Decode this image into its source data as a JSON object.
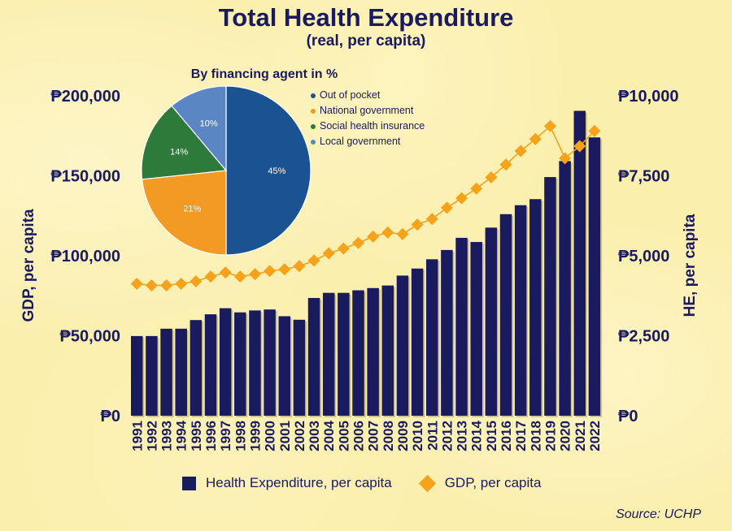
{
  "title": "Total Health Expenditure",
  "subtitle": "(real, per capita)",
  "source": "Source: UCHP",
  "chart_data": [
    {
      "type": "bar",
      "categories": [
        "1991",
        "1992",
        "1993",
        "1994",
        "1995",
        "1996",
        "1997",
        "1998",
        "1999",
        "2000",
        "2001",
        "2002",
        "2003",
        "2004",
        "2005",
        "2006",
        "2007",
        "2008",
        "2009",
        "2010",
        "2011",
        "2012",
        "2013",
        "2014",
        "2015",
        "2016",
        "2017",
        "2018",
        "2019",
        "2020",
        "2021",
        "2022"
      ],
      "series": [
        {
          "name": "Health Expenditure, per capita",
          "kind": "bar",
          "axis": "right",
          "color": "#1a1a5e",
          "values": [
            2490,
            2490,
            2720,
            2720,
            2990,
            3170,
            3360,
            3230,
            3290,
            3320,
            3110,
            3000,
            3680,
            3840,
            3840,
            3920,
            3990,
            4070,
            4380,
            4600,
            4890,
            5180,
            5560,
            5430,
            5880,
            6300,
            6580,
            6770,
            7460,
            7960,
            9530,
            8700
          ]
        },
        {
          "name": "GDP, per capita",
          "kind": "line",
          "axis": "left",
          "color": "#f7a21b",
          "values": [
            82500,
            81500,
            81500,
            82500,
            84000,
            87000,
            89500,
            87000,
            88500,
            90500,
            91500,
            93500,
            97000,
            101500,
            104500,
            108000,
            112000,
            114500,
            113500,
            119500,
            123000,
            130000,
            136000,
            142000,
            149000,
            157000,
            165500,
            173000,
            181000,
            161000,
            168500,
            178000
          ]
        }
      ],
      "y_left": {
        "label": "GDP, per capita",
        "ylim": [
          0,
          200000
        ],
        "ticks": [
          "₱0",
          "₱50,000",
          "₱100,000",
          "₱150,000",
          "₱200,000"
        ]
      },
      "y_right": {
        "label": "HE, per capita",
        "ylim": [
          0,
          10000
        ],
        "ticks": [
          "₱0",
          "₱2,500",
          "₱5,000",
          "₱7,500",
          "₱10,000"
        ]
      },
      "legend": {
        "position": "bottom",
        "items": [
          "Health Expenditure, per capita",
          "GDP, per capita"
        ]
      }
    },
    {
      "type": "pie",
      "title": "By financing agent in %",
      "slices": [
        {
          "label": "Out of pocket",
          "value": 45,
          "text": "45%",
          "color": "#1a5292"
        },
        {
          "label": "National government",
          "value": 21,
          "text": "21%",
          "color": "#f39a24"
        },
        {
          "label": "Social health insurance",
          "value": 14,
          "text": "14%",
          "color": "#2d7a3a"
        },
        {
          "label": "Local government",
          "value": 10,
          "text": "10%",
          "color": "#5b86c4"
        }
      ]
    }
  ]
}
